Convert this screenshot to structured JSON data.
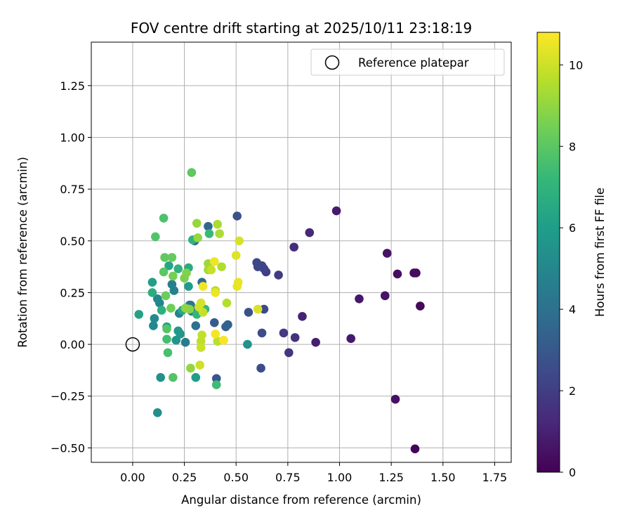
{
  "chart_data": {
    "type": "scatter",
    "title": "FOV centre drift starting at 2025/10/11 23:18:19",
    "xlabel": "Angular distance from reference (arcmin)",
    "ylabel": "Rotation from reference (arcmin)",
    "xlim": [
      -0.2,
      1.83
    ],
    "ylim": [
      -0.57,
      1.46
    ],
    "x_ticks": [
      0.0,
      0.25,
      0.5,
      0.75,
      1.0,
      1.25,
      1.5,
      1.75
    ],
    "x_tick_labels": [
      "0.00",
      "0.25",
      "0.50",
      "0.75",
      "1.00",
      "1.25",
      "1.50",
      "1.75"
    ],
    "y_ticks": [
      -0.5,
      -0.25,
      0.0,
      0.25,
      0.5,
      0.75,
      1.0,
      1.25
    ],
    "y_tick_labels": [
      "−0.50",
      "−0.25",
      "0.00",
      "0.25",
      "0.50",
      "0.75",
      "1.00",
      "1.25"
    ],
    "grid": true,
    "legend": {
      "label": "Reference platepar",
      "location": "upper right"
    },
    "reference_point": {
      "x": 0.0,
      "y": 0.0
    },
    "colorbar": {
      "label": "Hours from first FF file",
      "min": 0,
      "max": 10.8,
      "ticks": [
        0,
        2,
        4,
        6,
        8,
        10
      ],
      "tick_labels": [
        "0",
        "2",
        "4",
        "6",
        "8",
        "10"
      ],
      "colormap": "viridis",
      "stops": [
        "#440154",
        "#482878",
        "#3e4989",
        "#31688e",
        "#26828e",
        "#1f9e89",
        "#35b779",
        "#6ece58",
        "#b5de2b",
        "#fde725"
      ]
    },
    "series": [
      {
        "name": "FF files",
        "points": [
          {
            "x": 1.365,
            "y": -0.505,
            "h": 0.1
          },
          {
            "x": 1.39,
            "y": 0.185,
            "h": 0.2
          },
          {
            "x": 1.37,
            "y": 0.345,
            "h": 0.3
          },
          {
            "x": 1.36,
            "y": 0.345,
            "h": 0.35
          },
          {
            "x": 1.28,
            "y": 0.34,
            "h": 0.4
          },
          {
            "x": 1.27,
            "y": -0.265,
            "h": 0.5
          },
          {
            "x": 1.23,
            "y": 0.44,
            "h": 0.55
          },
          {
            "x": 1.22,
            "y": 0.235,
            "h": 0.6
          },
          {
            "x": 1.095,
            "y": 0.22,
            "h": 0.7
          },
          {
            "x": 1.055,
            "y": 0.028,
            "h": 0.75
          },
          {
            "x": 0.985,
            "y": 0.645,
            "h": 0.8
          },
          {
            "x": 0.885,
            "y": 0.01,
            "h": 0.9
          },
          {
            "x": 0.82,
            "y": 0.135,
            "h": 1.0
          },
          {
            "x": 0.855,
            "y": 0.54,
            "h": 1.2
          },
          {
            "x": 0.78,
            "y": 0.47,
            "h": 1.4
          },
          {
            "x": 0.785,
            "y": 0.033,
            "h": 1.6
          },
          {
            "x": 0.755,
            "y": -0.04,
            "h": 1.7
          },
          {
            "x": 0.73,
            "y": 0.055,
            "h": 1.8
          },
          {
            "x": 0.705,
            "y": 0.335,
            "h": 1.9
          },
          {
            "x": 0.645,
            "y": 0.35,
            "h": 2.0
          },
          {
            "x": 0.635,
            "y": 0.365,
            "h": 2.1
          },
          {
            "x": 0.625,
            "y": 0.38,
            "h": 2.2
          },
          {
            "x": 0.605,
            "y": 0.375,
            "h": 2.3
          },
          {
            "x": 0.6,
            "y": 0.395,
            "h": 2.35
          },
          {
            "x": 0.635,
            "y": 0.17,
            "h": 2.4
          },
          {
            "x": 0.625,
            "y": 0.055,
            "h": 2.5
          },
          {
            "x": 0.62,
            "y": -0.115,
            "h": 2.6
          },
          {
            "x": 0.56,
            "y": 0.155,
            "h": 2.7
          },
          {
            "x": 0.505,
            "y": 0.62,
            "h": 2.8
          },
          {
            "x": 0.405,
            "y": -0.165,
            "h": 3.0
          },
          {
            "x": 0.395,
            "y": 0.105,
            "h": 3.1
          },
          {
            "x": 0.46,
            "y": 0.095,
            "h": 3.3
          },
          {
            "x": 0.45,
            "y": 0.085,
            "h": 3.4
          },
          {
            "x": 0.365,
            "y": 0.57,
            "h": 3.6
          },
          {
            "x": 0.3,
            "y": 0.5,
            "h": 3.7
          },
          {
            "x": 0.335,
            "y": 0.3,
            "h": 3.8
          },
          {
            "x": 0.305,
            "y": 0.09,
            "h": 4.0
          },
          {
            "x": 0.32,
            "y": 0.16,
            "h": 4.1
          },
          {
            "x": 0.28,
            "y": 0.19,
            "h": 4.2
          },
          {
            "x": 0.275,
            "y": 0.19,
            "h": 4.3
          },
          {
            "x": 0.285,
            "y": 0.16,
            "h": 4.4
          },
          {
            "x": 0.255,
            "y": 0.01,
            "h": 4.5
          },
          {
            "x": 0.19,
            "y": 0.29,
            "h": 4.6
          },
          {
            "x": 0.2,
            "y": 0.26,
            "h": 4.7
          },
          {
            "x": 0.225,
            "y": 0.15,
            "h": 4.8
          },
          {
            "x": 0.13,
            "y": 0.2,
            "h": 4.9
          },
          {
            "x": 0.12,
            "y": 0.22,
            "h": 5.0
          },
          {
            "x": 0.1,
            "y": 0.09,
            "h": 5.1
          },
          {
            "x": 0.105,
            "y": 0.125,
            "h": 5.2
          },
          {
            "x": 0.12,
            "y": -0.33,
            "h": 5.3
          },
          {
            "x": 0.135,
            "y": -0.16,
            "h": 5.4
          },
          {
            "x": 0.555,
            "y": 0.0,
            "h": 5.5
          },
          {
            "x": 0.21,
            "y": 0.02,
            "h": 5.6
          },
          {
            "x": 0.23,
            "y": 0.05,
            "h": 5.7
          },
          {
            "x": 0.22,
            "y": 0.065,
            "h": 5.8
          },
          {
            "x": 0.27,
            "y": 0.28,
            "h": 5.9
          },
          {
            "x": 0.305,
            "y": -0.16,
            "h": 6.0
          },
          {
            "x": 0.095,
            "y": 0.3,
            "h": 6.1
          },
          {
            "x": 0.03,
            "y": 0.145,
            "h": 6.2
          },
          {
            "x": 0.165,
            "y": 0.085,
            "h": 6.3
          },
          {
            "x": 0.175,
            "y": 0.38,
            "h": 6.4
          },
          {
            "x": 0.24,
            "y": 0.165,
            "h": 6.5
          },
          {
            "x": 0.27,
            "y": 0.37,
            "h": 6.6
          },
          {
            "x": 0.095,
            "y": 0.25,
            "h": 6.7
          },
          {
            "x": 0.14,
            "y": 0.165,
            "h": 6.8
          },
          {
            "x": 0.22,
            "y": 0.365,
            "h": 6.9
          },
          {
            "x": 0.29,
            "y": 0.505,
            "h": 7.0
          },
          {
            "x": 0.31,
            "y": 0.145,
            "h": 7.1
          },
          {
            "x": 0.35,
            "y": 0.17,
            "h": 7.2
          },
          {
            "x": 0.37,
            "y": 0.535,
            "h": 7.3
          },
          {
            "x": 0.405,
            "y": -0.195,
            "h": 7.4
          },
          {
            "x": 0.165,
            "y": 0.025,
            "h": 7.5
          },
          {
            "x": 0.17,
            "y": -0.04,
            "h": 7.6
          },
          {
            "x": 0.15,
            "y": 0.61,
            "h": 7.7
          },
          {
            "x": 0.11,
            "y": 0.52,
            "h": 7.8
          },
          {
            "x": 0.195,
            "y": -0.16,
            "h": 7.85
          },
          {
            "x": 0.165,
            "y": 0.075,
            "h": 7.9
          },
          {
            "x": 0.15,
            "y": 0.35,
            "h": 8.0
          },
          {
            "x": 0.285,
            "y": 0.83,
            "h": 8.05
          },
          {
            "x": 0.155,
            "y": 0.42,
            "h": 8.1
          },
          {
            "x": 0.19,
            "y": 0.42,
            "h": 8.2
          },
          {
            "x": 0.16,
            "y": 0.235,
            "h": 8.3
          },
          {
            "x": 0.185,
            "y": 0.175,
            "h": 8.4
          },
          {
            "x": 0.195,
            "y": 0.33,
            "h": 8.5
          },
          {
            "x": 0.25,
            "y": 0.32,
            "h": 8.6
          },
          {
            "x": 0.26,
            "y": 0.345,
            "h": 8.7
          },
          {
            "x": 0.275,
            "y": 0.17,
            "h": 8.8
          },
          {
            "x": 0.255,
            "y": 0.175,
            "h": 8.9
          },
          {
            "x": 0.28,
            "y": -0.115,
            "h": 9.0
          },
          {
            "x": 0.315,
            "y": 0.515,
            "h": 9.05
          },
          {
            "x": 0.31,
            "y": 0.585,
            "h": 9.1
          },
          {
            "x": 0.365,
            "y": 0.39,
            "h": 9.2
          },
          {
            "x": 0.365,
            "y": 0.36,
            "h": 9.3
          },
          {
            "x": 0.41,
            "y": 0.58,
            "h": 9.4
          },
          {
            "x": 0.42,
            "y": 0.535,
            "h": 9.45
          },
          {
            "x": 0.43,
            "y": 0.375,
            "h": 9.5
          },
          {
            "x": 0.4,
            "y": 0.26,
            "h": 9.55
          },
          {
            "x": 0.455,
            "y": 0.2,
            "h": 9.6
          },
          {
            "x": 0.41,
            "y": 0.015,
            "h": 9.7
          },
          {
            "x": 0.33,
            "y": 0.015,
            "h": 9.75
          },
          {
            "x": 0.335,
            "y": 0.045,
            "h": 9.8
          },
          {
            "x": 0.34,
            "y": 0.155,
            "h": 9.85
          },
          {
            "x": 0.38,
            "y": 0.36,
            "h": 9.9
          },
          {
            "x": 0.33,
            "y": -0.015,
            "h": 9.95
          },
          {
            "x": 0.325,
            "y": -0.1,
            "h": 10.0
          },
          {
            "x": 0.32,
            "y": 0.18,
            "h": 10.05
          },
          {
            "x": 0.33,
            "y": 0.2,
            "h": 10.1
          },
          {
            "x": 0.515,
            "y": 0.5,
            "h": 10.15
          },
          {
            "x": 0.605,
            "y": 0.17,
            "h": 10.2
          },
          {
            "x": 0.5,
            "y": 0.43,
            "h": 10.3
          },
          {
            "x": 0.505,
            "y": 0.28,
            "h": 10.4
          },
          {
            "x": 0.51,
            "y": 0.3,
            "h": 10.45
          },
          {
            "x": 0.4,
            "y": 0.25,
            "h": 10.5
          },
          {
            "x": 0.395,
            "y": 0.4,
            "h": 10.55
          },
          {
            "x": 0.34,
            "y": 0.28,
            "h": 10.6
          },
          {
            "x": 0.4,
            "y": 0.05,
            "h": 10.65
          },
          {
            "x": 0.44,
            "y": 0.02,
            "h": 10.7
          }
        ]
      }
    ]
  }
}
